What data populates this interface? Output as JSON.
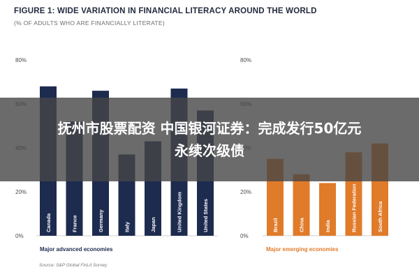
{
  "figure": {
    "title": "FIGURE 1: WIDE VARIATION IN FINANCIAL LITERACY AROUND THE WORLD",
    "subtitle": "(% OF ADULTS WHO ARE FINANCIALLY LITERATE)",
    "source": "Source: S&P Global FinLit Survey"
  },
  "overlay": {
    "line1": "抚州市股票配资 中国银河证券：完成发行50亿元",
    "line2": "永续次级债"
  },
  "colors": {
    "advanced": "#1d2b4f",
    "emerging": "#e07b2a",
    "overlay": "#464646"
  },
  "chart_data": [
    {
      "type": "bar",
      "title": "Major advanced economies",
      "categories": [
        "Canada",
        "France",
        "Germany",
        "Italy",
        "Japan",
        "United Kingdom",
        "United States"
      ],
      "values": [
        68,
        52,
        66,
        37,
        43,
        67,
        57
      ],
      "ylim": [
        0,
        80
      ],
      "yticks": [
        "0%",
        "20%",
        "40%",
        "60%",
        "80%"
      ],
      "color": "#1d2b4f"
    },
    {
      "type": "bar",
      "title": "Major emerging economies",
      "categories": [
        "Brazil",
        "China",
        "India",
        "Russian Federation",
        "South Africa"
      ],
      "values": [
        35,
        28,
        24,
        38,
        42
      ],
      "ylim": [
        0,
        80
      ],
      "yticks": [
        "0%",
        "20%",
        "40%",
        "60%",
        "80%"
      ],
      "color": "#e07b2a"
    }
  ]
}
